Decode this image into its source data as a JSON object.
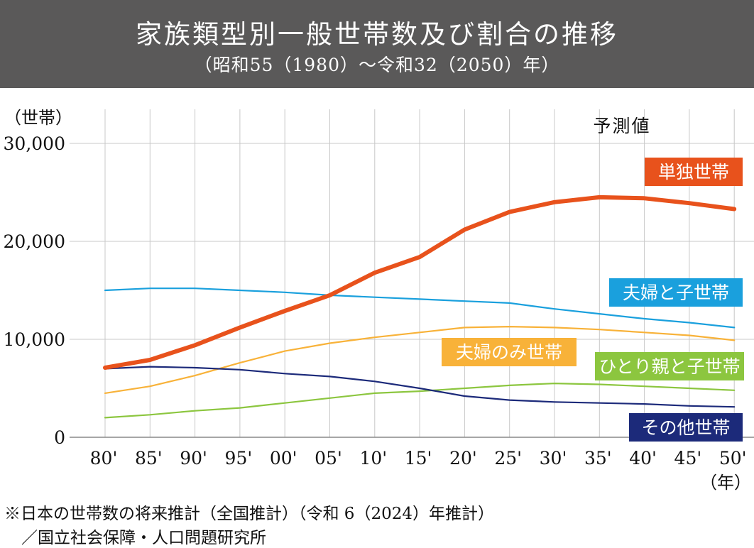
{
  "header": {
    "title": "家族類型別一般世帯数及び割合の推移",
    "subtitle": "（昭和55（1980）〜令和32（2050）年）"
  },
  "notes": {
    "line1": "※日本の世帯数の将来推計（全国推計）（令和 6（2024）年推計）",
    "line2": "／国立社会保障・人口問題研究所"
  },
  "colors": {
    "header_bg": "#5a5959",
    "single": "#e8521c",
    "couple_children": "#1aa0dd",
    "couple_only": "#f8b239",
    "single_parent": "#8cc63f",
    "other": "#1c2a7a",
    "grid": "#c8c8c8"
  },
  "chart_data": {
    "type": "line",
    "ylabel": "（世帯）",
    "xlabel": "（年）",
    "projection_label": "予測値",
    "ylim": [
      0,
      30000
    ],
    "yticks": [
      {
        "value": 0,
        "label": "0"
      },
      {
        "value": 10000,
        "label": "10,000"
      },
      {
        "value": 20000,
        "label": "20,000"
      },
      {
        "value": 30000,
        "label": "30,000"
      }
    ],
    "categories": [
      "80'",
      "85'",
      "90'",
      "95'",
      "00'",
      "05'",
      "10'",
      "15'",
      "20'",
      "25'",
      "30'",
      "35'",
      "40'",
      "45'",
      "50'"
    ],
    "grid": true,
    "series": [
      {
        "key": "couple_children",
        "name": "夫婦と子世帯",
        "color": "#1aa0dd",
        "width": 2.2,
        "values": [
          15000,
          15200,
          15200,
          15000,
          14800,
          14500,
          14300,
          14100,
          13900,
          13700,
          13100,
          12600,
          12100,
          11700,
          11200
        ]
      },
      {
        "key": "couple_only",
        "name": "夫婦のみ世帯",
        "color": "#f8b239",
        "width": 2.2,
        "values": [
          4500,
          5200,
          6300,
          7600,
          8800,
          9600,
          10200,
          10700,
          11200,
          11300,
          11200,
          11000,
          10700,
          10400,
          9900
        ]
      },
      {
        "key": "single_parent",
        "name": "ひとり親と子世帯",
        "color": "#8cc63f",
        "width": 2.2,
        "values": [
          2000,
          2300,
          2700,
          3000,
          3500,
          4000,
          4500,
          4700,
          5000,
          5300,
          5500,
          5400,
          5200,
          5000,
          4800
        ]
      },
      {
        "key": "other",
        "name": "その他世帯",
        "color": "#1c2a7a",
        "width": 2.2,
        "values": [
          7000,
          7200,
          7100,
          6900,
          6500,
          6200,
          5700,
          5000,
          4200,
          3800,
          3600,
          3500,
          3400,
          3200,
          3100
        ]
      },
      {
        "key": "single",
        "name": "単独世帯",
        "color": "#e8521c",
        "width": 6,
        "values": [
          7100,
          7900,
          9400,
          11200,
          12900,
          14500,
          16800,
          18400,
          21200,
          23000,
          24000,
          24500,
          24400,
          23900,
          23300
        ]
      }
    ]
  }
}
